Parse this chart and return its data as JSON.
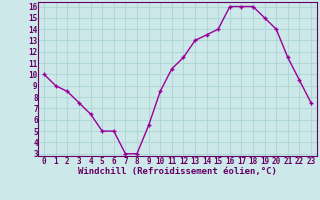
{
  "x": [
    0,
    1,
    2,
    3,
    4,
    5,
    6,
    7,
    8,
    9,
    10,
    11,
    12,
    13,
    14,
    15,
    16,
    17,
    18,
    19,
    20,
    21,
    22,
    23
  ],
  "y": [
    10,
    9,
    8.5,
    7.5,
    6.5,
    5,
    5,
    3,
    3,
    5.5,
    8.5,
    10.5,
    11.5,
    13,
    13.5,
    14,
    16,
    16,
    16,
    15,
    14,
    11.5,
    9.5,
    7.5
  ],
  "line_color": "#990099",
  "marker": "+",
  "bg_color": "#cde8e8",
  "grid_color": "#b0d8d8",
  "xlabel": "Windchill (Refroidissement éolien,°C)",
  "xlabel_color": "#660066",
  "tick_color": "#660066",
  "spine_color": "#660066",
  "ylim": [
    3,
    16
  ],
  "yticks": [
    3,
    4,
    5,
    6,
    7,
    8,
    9,
    10,
    11,
    12,
    13,
    14,
    15,
    16
  ],
  "xticks": [
    0,
    1,
    2,
    3,
    4,
    5,
    6,
    7,
    8,
    9,
    10,
    11,
    12,
    13,
    14,
    15,
    16,
    17,
    18,
    19,
    20,
    21,
    22,
    23
  ],
  "tick_fontsize": 5.5,
  "xlabel_fontsize": 6.5,
  "font_family": "monospace"
}
